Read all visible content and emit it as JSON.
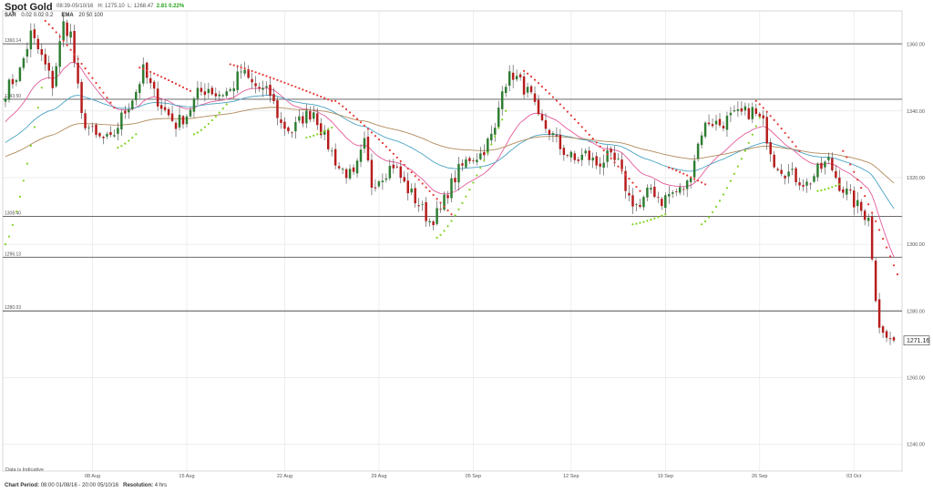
{
  "header": {
    "title": "Spot Gold",
    "period": "08:39-05/10/16",
    "high": "H: 1275.10",
    "low": "L: 1268.47",
    "change": "2.81 0.22%"
  },
  "indicators": {
    "sar_label": "SAR",
    "sar_params": "0.02  0.02  0.2",
    "ema_label": "EMA",
    "ema_params": "20  50  100"
  },
  "footer": {
    "chart_period_label": "Chart Period:",
    "chart_period_value": "08:00 01/08/16 - 20:00 05/10/16",
    "resolution_label": "Resolution:",
    "resolution_value": "4 hrs",
    "indicative": "Data is Indicative"
  },
  "current_price": "1271.16",
  "colors": {
    "up_candle": "#2e7d32",
    "down_candle": "#b71c1c",
    "sar_below": "#7ed321",
    "sar_above": "#e53935",
    "ema20": "#e35b9a",
    "ema50": "#4aa3c4",
    "ema100": "#b08a5a",
    "grid": "#e8e8e8",
    "level_line": "#555555"
  },
  "chart_data": {
    "type": "candlestick",
    "title": "Spot Gold",
    "ylim": [
      1232,
      1370
    ],
    "y_ticks": [
      1240,
      1260,
      1280,
      1300,
      1320,
      1340,
      1360
    ],
    "y_tick_labels": [
      "1240.00",
      "1260.00",
      "1280.00",
      "1300.00",
      "1320.00",
      "1340.00",
      "1360.00"
    ],
    "x_ticks": [
      {
        "label": "08 Aug",
        "bar": 24
      },
      {
        "label": "15 Aug",
        "bar": 50
      },
      {
        "label": "22 Aug",
        "bar": 77
      },
      {
        "label": "29 Aug",
        "bar": 103
      },
      {
        "label": "05 Sep",
        "bar": 129
      },
      {
        "label": "12 Sep",
        "bar": 156
      },
      {
        "label": "19 Sep",
        "bar": 182
      },
      {
        "label": "26 Sep",
        "bar": 208
      },
      {
        "label": "03 Oct",
        "bar": 234
      }
    ],
    "levels": [
      {
        "label": "1360.14",
        "value": 1360.14
      },
      {
        "label": "1343.50",
        "value": 1343.5
      },
      {
        "label": "1308.40",
        "value": 1308.4
      },
      {
        "label": "1296.13",
        "value": 1296.13
      },
      {
        "label": "1280.03",
        "value": 1280.03
      }
    ],
    "anchors": [
      [
        0,
        1346
      ],
      [
        4,
        1352
      ],
      [
        7,
        1363
      ],
      [
        10,
        1356
      ],
      [
        13,
        1348
      ],
      [
        16,
        1366
      ],
      [
        18,
        1363
      ],
      [
        21,
        1338
      ],
      [
        25,
        1332
      ],
      [
        29,
        1331
      ],
      [
        32,
        1338
      ],
      [
        36,
        1346
      ],
      [
        38,
        1352
      ],
      [
        41,
        1345
      ],
      [
        44,
        1340
      ],
      [
        47,
        1336
      ],
      [
        50,
        1339
      ],
      [
        53,
        1345
      ],
      [
        56,
        1347
      ],
      [
        58,
        1345
      ],
      [
        62,
        1346
      ],
      [
        65,
        1352
      ],
      [
        68,
        1348
      ],
      [
        71,
        1346
      ],
      [
        73,
        1345
      ],
      [
        76,
        1336
      ],
      [
        79,
        1334
      ],
      [
        82,
        1338
      ],
      [
        85,
        1340
      ],
      [
        88,
        1332
      ],
      [
        92,
        1323
      ],
      [
        96,
        1320
      ],
      [
        99,
        1330
      ],
      [
        101,
        1318
      ],
      [
        104,
        1321
      ],
      [
        107,
        1324
      ],
      [
        110,
        1318
      ],
      [
        114,
        1312
      ],
      [
        117,
        1307
      ],
      [
        120,
        1310
      ],
      [
        122,
        1316
      ],
      [
        125,
        1322
      ],
      [
        128,
        1326
      ],
      [
        131,
        1327
      ],
      [
        135,
        1334
      ],
      [
        137,
        1348
      ],
      [
        140,
        1351
      ],
      [
        143,
        1347
      ],
      [
        145,
        1344
      ],
      [
        147,
        1337
      ],
      [
        150,
        1334
      ],
      [
        153,
        1329
      ],
      [
        157,
        1325
      ],
      [
        160,
        1327
      ],
      [
        163,
        1324
      ],
      [
        166,
        1326
      ],
      [
        169,
        1324
      ],
      [
        172,
        1314
      ],
      [
        175,
        1311
      ],
      [
        178,
        1317
      ],
      [
        181,
        1313
      ],
      [
        183,
        1315
      ],
      [
        186,
        1316
      ],
      [
        188,
        1318
      ],
      [
        192,
        1334
      ],
      [
        194,
        1337
      ],
      [
        197,
        1336
      ],
      [
        200,
        1338
      ],
      [
        203,
        1339
      ],
      [
        206,
        1340
      ],
      [
        209,
        1336
      ],
      [
        212,
        1325
      ],
      [
        215,
        1322
      ],
      [
        218,
        1320
      ],
      [
        221,
        1318
      ],
      [
        224,
        1322
      ],
      [
        227,
        1325
      ],
      [
        230,
        1318
      ],
      [
        233,
        1314
      ],
      [
        236,
        1310
      ],
      [
        238,
        1308
      ],
      [
        240,
        1283
      ],
      [
        241,
        1275
      ],
      [
        243,
        1272
      ],
      [
        245,
        1271.16
      ]
    ],
    "sar_segments": [
      {
        "side": "below",
        "start": 0,
        "end": 10,
        "from": 1300,
        "to": 1347
      },
      {
        "side": "above",
        "start": 11,
        "end": 30,
        "from": 1367,
        "to": 1341
      },
      {
        "side": "below",
        "start": 31,
        "end": 36,
        "from": 1329,
        "to": 1333
      },
      {
        "side": "above",
        "start": 37,
        "end": 51,
        "from": 1353,
        "to": 1346
      },
      {
        "side": "below",
        "start": 52,
        "end": 61,
        "from": 1333,
        "to": 1342
      },
      {
        "side": "above",
        "start": 62,
        "end": 90,
        "from": 1354,
        "to": 1343
      },
      {
        "side": "below",
        "start": 83,
        "end": 90,
        "from": 1332,
        "to": 1335
      },
      {
        "side": "above",
        "start": 91,
        "end": 123,
        "from": 1343,
        "to": 1309
      },
      {
        "side": "below",
        "start": 119,
        "end": 138,
        "from": 1302,
        "to": 1340
      },
      {
        "side": "above",
        "start": 143,
        "end": 175,
        "from": 1352,
        "to": 1316
      },
      {
        "side": "below",
        "start": 173,
        "end": 182,
        "from": 1306,
        "to": 1309
      },
      {
        "side": "above",
        "start": 183,
        "end": 193,
        "from": 1323,
        "to": 1318
      },
      {
        "side": "below",
        "start": 192,
        "end": 208,
        "from": 1306,
        "to": 1338
      },
      {
        "side": "above",
        "start": 207,
        "end": 219,
        "from": 1343,
        "to": 1328
      },
      {
        "side": "below",
        "start": 224,
        "end": 230,
        "from": 1316,
        "to": 1318
      },
      {
        "side": "above",
        "start": 231,
        "end": 246,
        "from": 1328,
        "to": 1291
      }
    ],
    "n_bars": 246
  }
}
